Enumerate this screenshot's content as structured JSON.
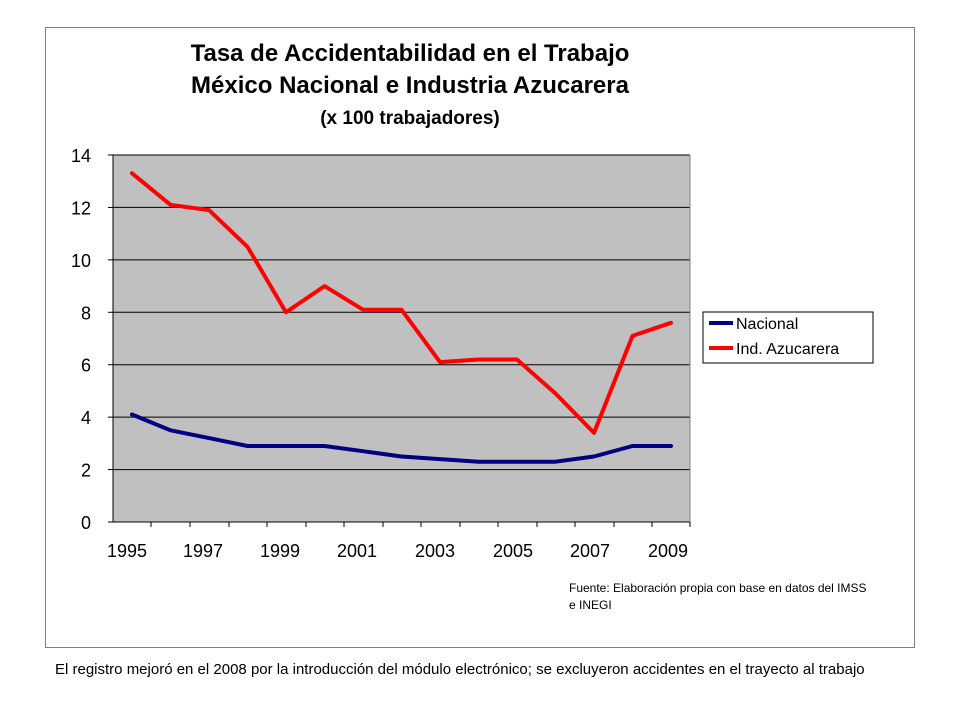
{
  "chart_data": {
    "type": "line",
    "title": "Tasa de Accidentabilidad en el Trabajo",
    "subtitle": "México Nacional e Industria Azucarera",
    "unit_note": "(x 100 trabajadores)",
    "x_tick_labels": [
      "1995",
      "1997",
      "1999",
      "2001",
      "2003",
      "2005",
      "2007",
      "2009"
    ],
    "y_ticks": [
      0,
      2,
      4,
      6,
      8,
      10,
      12,
      14
    ],
    "ylim": [
      0,
      14
    ],
    "x": [
      1995,
      1996,
      1997,
      1998,
      1999,
      2000,
      2001,
      2002,
      2003,
      2004,
      2005,
      2006,
      2007,
      2008,
      2009
    ],
    "grid": "horizontal",
    "plot_background": "#c0c0c0",
    "legend_position": "right",
    "series": [
      {
        "name": "Nacional",
        "color": "#000080",
        "values": [
          4.1,
          3.5,
          3.2,
          2.9,
          2.9,
          2.9,
          2.7,
          2.5,
          2.4,
          2.3,
          2.3,
          2.3,
          2.5,
          2.9,
          2.9
        ]
      },
      {
        "name": "Ind. Azucarera",
        "color": "#ff0000",
        "values": [
          13.3,
          12.1,
          11.9,
          10.5,
          8.0,
          9.0,
          8.1,
          8.1,
          6.1,
          6.2,
          6.2,
          4.9,
          3.4,
          7.1,
          7.6
        ]
      }
    ]
  },
  "source_text": "Fuente: Elaboración propia con base en datos del IMSS e INEGI",
  "footnote": "El registro mejoró en el 2008 por la introducción del módulo electrónico; se excluyeron accidentes en el trayecto al trabajo"
}
